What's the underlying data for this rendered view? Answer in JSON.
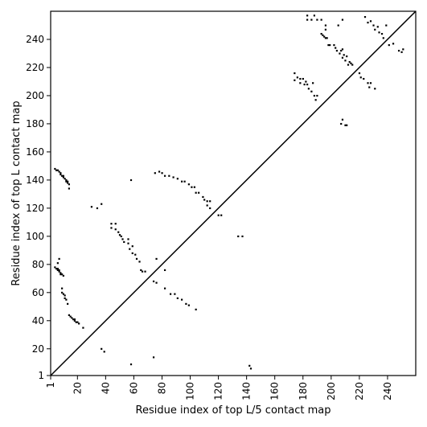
{
  "chart_data": {
    "type": "scatter",
    "xlabel": "Residue index of top L/5 contact map",
    "ylabel": "Residue index of top L contact map",
    "xlim": [
      1,
      260
    ],
    "ylim": [
      1,
      260
    ],
    "grid": false,
    "x_ticks": [
      1,
      20,
      40,
      60,
      80,
      100,
      120,
      140,
      160,
      180,
      200,
      220,
      240
    ],
    "y_ticks": [
      1,
      20,
      40,
      60,
      80,
      100,
      120,
      140,
      160,
      180,
      200,
      220,
      240
    ],
    "diagonal": {
      "from": [
        1,
        1
      ],
      "to": [
        260,
        260
      ]
    },
    "series": [
      {
        "color": "#000000",
        "points": [
          [
            4,
            148
          ],
          [
            5,
            147
          ],
          [
            6,
            147
          ],
          [
            7,
            146
          ],
          [
            8,
            145
          ],
          [
            8,
            144
          ],
          [
            9,
            143
          ],
          [
            10,
            143
          ],
          [
            10,
            142
          ],
          [
            11,
            141
          ],
          [
            12,
            140
          ],
          [
            12,
            139
          ],
          [
            13,
            139
          ],
          [
            13,
            138
          ],
          [
            14,
            137
          ],
          [
            14,
            134
          ],
          [
            4,
            78
          ],
          [
            5,
            77
          ],
          [
            6,
            77
          ],
          [
            6,
            76
          ],
          [
            7,
            76
          ],
          [
            7,
            75
          ],
          [
            8,
            74
          ],
          [
            8,
            73
          ],
          [
            9,
            73
          ],
          [
            10,
            72
          ],
          [
            6,
            81
          ],
          [
            7,
            84
          ],
          [
            9,
            63
          ],
          [
            9,
            60
          ],
          [
            10,
            59
          ],
          [
            11,
            58
          ],
          [
            11,
            56
          ],
          [
            12,
            55
          ],
          [
            13,
            52
          ],
          [
            14,
            44
          ],
          [
            15,
            43
          ],
          [
            16,
            42
          ],
          [
            17,
            41
          ],
          [
            18,
            41
          ],
          [
            18,
            40
          ],
          [
            19,
            39
          ],
          [
            20,
            39
          ],
          [
            21,
            38
          ],
          [
            24,
            35
          ],
          [
            30,
            121
          ],
          [
            34,
            120
          ],
          [
            37,
            123
          ],
          [
            37,
            20
          ],
          [
            39,
            18
          ],
          [
            44,
            109
          ],
          [
            44,
            106
          ],
          [
            47,
            109
          ],
          [
            47,
            105
          ],
          [
            49,
            103
          ],
          [
            50,
            101
          ],
          [
            51,
            100
          ],
          [
            52,
            98
          ],
          [
            53,
            96
          ],
          [
            56,
            98
          ],
          [
            56,
            95
          ],
          [
            57,
            91
          ],
          [
            59,
            93
          ],
          [
            59,
            88
          ],
          [
            61,
            87
          ],
          [
            62,
            84
          ],
          [
            64,
            82
          ],
          [
            65,
            76
          ],
          [
            66,
            75
          ],
          [
            68,
            75
          ],
          [
            58,
            9
          ],
          [
            58,
            140
          ],
          [
            75,
            145
          ],
          [
            78,
            146
          ],
          [
            80,
            145
          ],
          [
            82,
            143
          ],
          [
            85,
            143
          ],
          [
            88,
            142
          ],
          [
            91,
            141
          ],
          [
            94,
            139
          ],
          [
            96,
            139
          ],
          [
            99,
            137
          ],
          [
            101,
            135
          ],
          [
            103,
            135
          ],
          [
            104,
            131
          ],
          [
            106,
            131
          ],
          [
            74,
            68
          ],
          [
            76,
            67
          ],
          [
            76,
            84
          ],
          [
            82,
            76
          ],
          [
            82,
            63
          ],
          [
            86,
            59
          ],
          [
            89,
            59
          ],
          [
            91,
            56
          ],
          [
            94,
            55
          ],
          [
            97,
            52
          ],
          [
            99,
            51
          ],
          [
            104,
            48
          ],
          [
            109,
            128
          ],
          [
            110,
            126
          ],
          [
            112,
            125
          ],
          [
            112,
            122
          ],
          [
            114,
            120
          ],
          [
            114,
            125
          ],
          [
            120,
            115
          ],
          [
            122,
            115
          ],
          [
            134,
            100
          ],
          [
            137,
            100
          ],
          [
            142,
            8
          ],
          [
            143,
            6
          ],
          [
            74,
            14
          ],
          [
            174,
            216
          ],
          [
            174,
            211
          ],
          [
            176,
            213
          ],
          [
            178,
            212
          ],
          [
            178,
            209
          ],
          [
            180,
            212
          ],
          [
            181,
            208
          ],
          [
            182,
            210
          ],
          [
            183,
            208
          ],
          [
            184,
            205
          ],
          [
            186,
            203
          ],
          [
            187,
            209
          ],
          [
            188,
            200
          ],
          [
            189,
            197
          ],
          [
            190,
            200
          ],
          [
            183,
            254
          ],
          [
            183,
            257
          ],
          [
            186,
            254
          ],
          [
            188,
            257
          ],
          [
            190,
            254
          ],
          [
            193,
            254
          ],
          [
            193,
            244
          ],
          [
            194,
            243
          ],
          [
            195,
            242
          ],
          [
            196,
            241
          ],
          [
            197,
            241
          ],
          [
            196,
            247
          ],
          [
            196,
            250
          ],
          [
            198,
            236
          ],
          [
            199,
            236
          ],
          [
            202,
            236
          ],
          [
            203,
            234
          ],
          [
            204,
            232
          ],
          [
            205,
            250
          ],
          [
            206,
            230
          ],
          [
            207,
            232
          ],
          [
            208,
            227
          ],
          [
            208,
            233
          ],
          [
            209,
            229
          ],
          [
            210,
            225
          ],
          [
            211,
            228
          ],
          [
            212,
            222
          ],
          [
            213,
            224
          ],
          [
            214,
            223
          ],
          [
            215,
            222
          ],
          [
            207,
            180
          ],
          [
            208,
            183
          ],
          [
            210,
            179
          ],
          [
            211,
            179
          ],
          [
            208,
            254
          ],
          [
            220,
            216
          ],
          [
            221,
            213
          ],
          [
            223,
            212
          ],
          [
            226,
            209
          ],
          [
            227,
            206
          ],
          [
            228,
            209
          ],
          [
            231,
            205
          ],
          [
            224,
            256
          ],
          [
            226,
            252
          ],
          [
            228,
            253
          ],
          [
            230,
            250
          ],
          [
            231,
            247
          ],
          [
            233,
            249
          ],
          [
            234,
            245
          ],
          [
            236,
            244
          ],
          [
            237,
            241
          ],
          [
            239,
            250
          ],
          [
            241,
            236
          ],
          [
            244,
            237
          ],
          [
            248,
            232
          ],
          [
            250,
            231
          ],
          [
            251,
            233
          ]
        ]
      }
    ]
  }
}
